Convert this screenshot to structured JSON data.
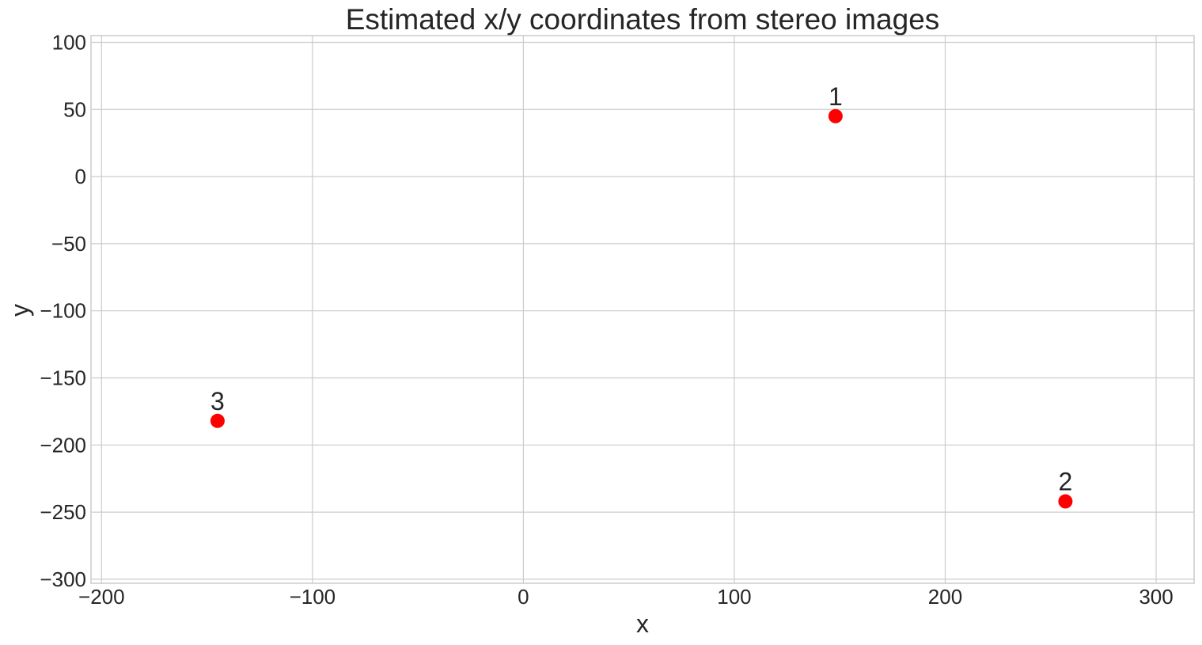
{
  "chart_data": {
    "type": "scatter",
    "title": "Estimated x/y coordinates from stereo images",
    "xlabel": "x",
    "ylabel": "y",
    "xlim": [
      -205,
      318
    ],
    "ylim": [
      -303,
      105
    ],
    "xticks": [
      -200,
      -100,
      0,
      100,
      200,
      300
    ],
    "xtick_labels": [
      "−200",
      "−100",
      "0",
      "100",
      "200",
      "300"
    ],
    "yticks": [
      100,
      50,
      0,
      -50,
      -100,
      -150,
      -200,
      -250,
      -300
    ],
    "ytick_labels": [
      "100",
      "50",
      "0",
      "−50",
      "−100",
      "−150",
      "−200",
      "−250",
      "−300"
    ],
    "grid": true,
    "points": [
      {
        "label": "1",
        "x": 148,
        "y": 45
      },
      {
        "label": "2",
        "x": 257,
        "y": -242
      },
      {
        "label": "3",
        "x": -145,
        "y": -182
      }
    ],
    "marker_color": "#ff0000"
  }
}
